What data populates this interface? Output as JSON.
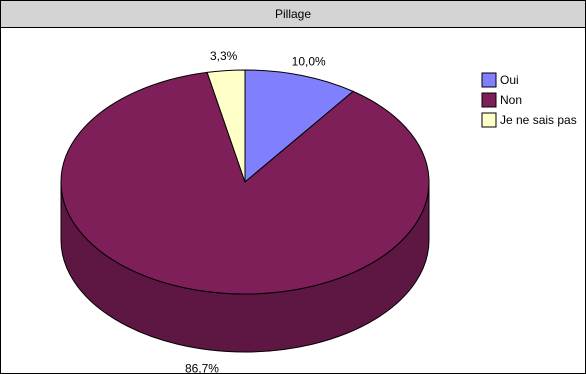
{
  "chart_data": {
    "type": "pie",
    "title": "Pillage",
    "categories": [
      "Oui",
      "Non",
      "Je ne sais pas"
    ],
    "values": [
      10.0,
      86.7,
      3.3
    ],
    "data_labels": [
      "10,0%",
      "86,7%",
      "3,3%"
    ],
    "colors": [
      "#8080ff",
      "#7f1f5a",
      "#ffffc8"
    ],
    "side_colors": [
      "#5a5ab3",
      "#5e1743",
      "#b3b38c"
    ],
    "legend": "right",
    "style": "3d"
  }
}
